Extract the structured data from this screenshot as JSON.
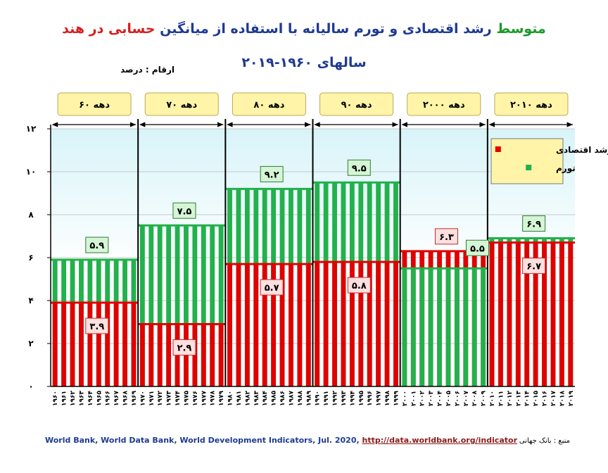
{
  "title": {
    "part1": "متوسط",
    "part2": "رشد اقتصادی و تورم سالیانه با استفاده از میانگین",
    "part3": "حسابی در هند",
    "line2": "سالهای ۱۹۶۰-۲۰۱۹"
  },
  "units_label": "ارقام : درصد",
  "source_en": "World Bank, World Data Bank, World Development Indicators, Jul. 2020,",
  "source_link": "http://data.worldbank.org/indicator",
  "source_fa": "منبع : بانک جهانی",
  "colors": {
    "growth": "#e00000",
    "inflation": "#22b14c",
    "decade_box": "#fff4a8",
    "plot_bg_top": "#d8f4f9"
  },
  "chart_data": {
    "type": "bar",
    "title": "متوسط رشد اقتصادی و تورم سالیانه با استفاده از میانگین حسابی در هند",
    "ylim": [
      0,
      12
    ],
    "yticks": [
      "۰",
      "۲",
      "۴",
      "۶",
      "۸",
      "۱۰",
      "۱۲"
    ],
    "legend_position": "top-right",
    "series": [
      {
        "name": "رشد اقتصادی",
        "color": "#e00000"
      },
      {
        "name": "تورم",
        "color": "#22b14c"
      }
    ],
    "decades": [
      {
        "label": "دهه ۶۰",
        "growth": 3.9,
        "inflation": 5.9,
        "growth_label": "۳.۹",
        "inflation_label": "۵.۹",
        "years": [
          "۱۹۶۰",
          "۱۹۶۱",
          "۱۹۶۲",
          "۱۹۶۳",
          "۱۹۶۴",
          "۱۹۶۵",
          "۱۹۶۶",
          "۱۹۶۷",
          "۱۹۶۸",
          "۱۹۶۹"
        ]
      },
      {
        "label": "دهه ۷۰",
        "growth": 2.9,
        "inflation": 7.5,
        "growth_label": "۲.۹",
        "inflation_label": "۷.۵",
        "years": [
          "۱۹۷۰",
          "۱۹۷۱",
          "۱۹۷۲",
          "۱۹۷۳",
          "۱۹۷۴",
          "۱۹۷۵",
          "۱۹۷۶",
          "۱۹۷۷",
          "۱۹۷۸",
          "۱۹۷۹"
        ]
      },
      {
        "label": "دهه ۸۰",
        "growth": 5.7,
        "inflation": 9.2,
        "growth_label": "۵.۷",
        "inflation_label": "۹.۲",
        "years": [
          "۱۹۸۰",
          "۱۹۸۱",
          "۱۹۸۲",
          "۱۹۸۳",
          "۱۹۸۴",
          "۱۹۸۵",
          "۱۹۸۶",
          "۱۹۸۷",
          "۱۹۸۸",
          "۱۹۸۹"
        ]
      },
      {
        "label": "دهه ۹۰",
        "growth": 5.8,
        "inflation": 9.5,
        "growth_label": "۵.۸",
        "inflation_label": "۹.۵",
        "years": [
          "۱۹۹۰",
          "۱۹۹۱",
          "۱۹۹۲",
          "۱۹۹۳",
          "۱۹۹۴",
          "۱۹۹۵",
          "۱۹۹۶",
          "۱۹۹۷",
          "۱۹۹۸",
          "۱۹۹۹"
        ]
      },
      {
        "label": "دهه ۲۰۰۰",
        "growth": 6.3,
        "inflation": 5.5,
        "growth_label": "۶.۳",
        "inflation_label": "۵.۵",
        "years": [
          "۲۰۰۰",
          "۲۰۰۱",
          "۲۰۰۲",
          "۲۰۰۳",
          "۲۰۰۴",
          "۲۰۰۵",
          "۲۰۰۶",
          "۲۰۰۷",
          "۲۰۰۸",
          "۲۰۰۹"
        ]
      },
      {
        "label": "دهه ۲۰۱۰",
        "growth": 6.7,
        "inflation": 6.9,
        "growth_label": "۶.۷",
        "inflation_label": "۶.۹",
        "years": [
          "۲۰۱۰",
          "۲۰۱۱",
          "۲۰۱۲",
          "۲۰۱۳",
          "۲۰۱۴",
          "۲۰۱۵",
          "۲۰۱۶",
          "۲۰۱۷",
          "۲۰۱۸",
          "۲۰۱۹"
        ]
      }
    ]
  }
}
